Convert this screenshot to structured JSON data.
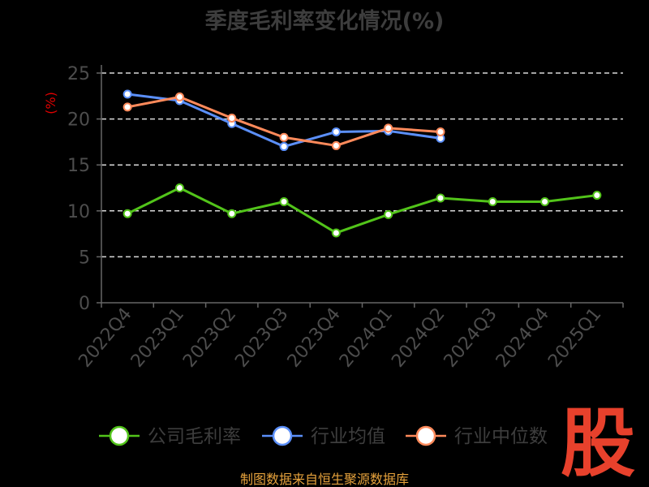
{
  "chart_data": {
    "type": "line",
    "title": "季度毛利率变化情况(%)",
    "ylabel": "(%)",
    "xlabel": "",
    "categories": [
      "2022Q4",
      "2023Q1",
      "2023Q2",
      "2023Q3",
      "2023Q4",
      "2024Q1",
      "2024Q2",
      "2024Q3",
      "2024Q4",
      "2025Q1"
    ],
    "ylim": [
      0,
      25
    ],
    "yticks": [
      0,
      5,
      10,
      15,
      20,
      25
    ],
    "grid": true,
    "legend_position": "bottom",
    "series": [
      {
        "name": "公司毛利率",
        "color": "#52c41a",
        "values": [
          9.7,
          12.5,
          9.7,
          11.0,
          7.6,
          9.6,
          11.4,
          11.0,
          11.0,
          11.7
        ]
      },
      {
        "name": "行业均值",
        "color": "#5b8ff9",
        "values": [
          22.7,
          22.0,
          19.5,
          17.0,
          18.6,
          18.7,
          17.9,
          null,
          null,
          null
        ]
      },
      {
        "name": "行业中位数",
        "color": "#ff8a5b",
        "values": [
          21.3,
          22.4,
          20.1,
          18.0,
          17.1,
          19.0,
          18.6,
          null,
          null,
          null
        ]
      }
    ]
  },
  "source": "制图数据来自恒生聚源数据库",
  "watermark": "股",
  "colors": {
    "background": "#000000",
    "title": "#3d3d3d",
    "axis": "#666666",
    "tick_label": "#4d4d4d",
    "grid": "#d9d9d9",
    "unit": "#e00000",
    "source": "#e6a23c",
    "watermark": "#e8412c"
  }
}
